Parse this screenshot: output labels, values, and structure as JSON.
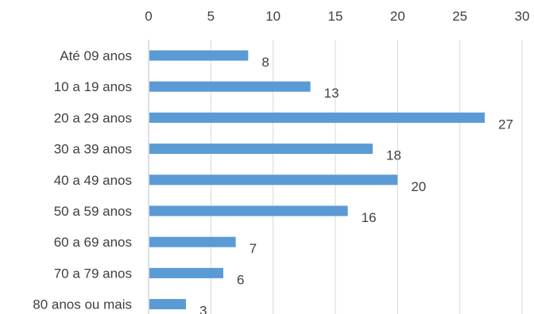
{
  "chart_data": {
    "type": "bar",
    "orientation": "horizontal",
    "title": "",
    "xlabel": "",
    "ylabel": "",
    "categories": [
      "Até 09 anos",
      "10 a 19 anos",
      "20 a 29 anos",
      "30 a 39 anos",
      "40 a 49 anos",
      "50 a 59 anos",
      "60 a 69 anos",
      "70 a 79 anos",
      "80 anos ou mais"
    ],
    "values": [
      8,
      13,
      27,
      18,
      20,
      16,
      7,
      6,
      3
    ],
    "xlim": [
      0,
      30
    ],
    "xticks": [
      0,
      5,
      10,
      15,
      20,
      25,
      30
    ],
    "xtick_labels": [
      "0",
      "5",
      "10",
      "15",
      "20",
      "25",
      "30"
    ],
    "value_axis_position": "top",
    "grid": true,
    "data_labels": true,
    "legend": "none",
    "bar_color": "#5b9bd5"
  }
}
